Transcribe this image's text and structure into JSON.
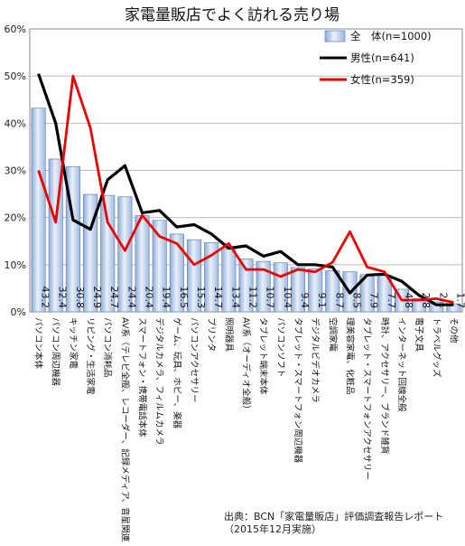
{
  "chart_data": {
    "type": "bar",
    "title": "家電量販店でよく訪れる売り場",
    "ylim": [
      0,
      60
    ],
    "yticks": [
      0,
      10,
      20,
      30,
      40,
      50,
      60
    ],
    "ytick_labels": [
      "0%",
      "10%",
      "20%",
      "30%",
      "40%",
      "50%",
      "60%"
    ],
    "grid": true,
    "legend_position": "top-right",
    "categories": [
      "パソコン本体",
      "パソコン周辺機器",
      "キッチン家電",
      "リビング・生活家電",
      "パソコン消耗品",
      "AV系（テレビ全般、レコーダー、記録メディア、音星関連）",
      "スマートフォン・携帯電話本体",
      "デジタルカメラ、フィルムカメラ",
      "ゲーム、玩具、ホビー、楽器",
      "パソコンアクセサリー",
      "プリンタ",
      "照明器具",
      "AV系（オーディオ全般）",
      "タブレット端末本体",
      "パソコンソフト",
      "タブレット・スマートフォン周辺機器",
      "デジタルビデオカメラ",
      "空調家電",
      "理美容家電、化粧品",
      "タブレット・スマートフォンアクセサリー",
      "時計、アクセサリー、ブランド雑貨",
      "インターネット回線全般",
      "電子文具",
      "トラベルグッズ",
      "その他"
    ],
    "series": [
      {
        "name": "全　体(n=1000)",
        "type": "bar",
        "color": "#b9cde8",
        "values": [
          43.2,
          32.4,
          30.8,
          24.9,
          24.7,
          24.4,
          20.4,
          19.4,
          16.5,
          15.3,
          14.7,
          13.4,
          11.2,
          10.7,
          10.4,
          9.4,
          9.1,
          8.7,
          8.5,
          7.9,
          7.7,
          4.8,
          2.8,
          2.1,
          1.7
        ],
        "value_labels": [
          "43.2",
          "32.4",
          "30.8",
          "24.9",
          "24.7",
          "24.4",
          "20.4",
          "19.4",
          "16.5",
          "15.3",
          "14.7",
          "13.4",
          "11.2",
          "10.7",
          "10.4",
          "9.4",
          "9.1",
          "8.7",
          "8.5",
          "7.9",
          "7.7",
          "4.8",
          "2.8",
          "2.1",
          "1.7"
        ]
      },
      {
        "name": "男性(n=641)",
        "type": "line",
        "color": "#000000",
        "values": [
          50.5,
          40,
          19.5,
          17.5,
          28,
          31,
          21,
          21.5,
          18,
          18.5,
          16.5,
          13.5,
          14,
          11.8,
          12.8,
          10,
          10,
          9.5,
          4,
          7.8,
          8,
          6.5,
          3.5,
          1.5,
          1.5
        ]
      },
      {
        "name": "女性(n=359)",
        "type": "line",
        "color": "#ee0000",
        "values": [
          30,
          19,
          50,
          39,
          19,
          13,
          20.5,
          16,
          14.5,
          10,
          12,
          14.5,
          9,
          9,
          7.5,
          9,
          8.5,
          10.5,
          17,
          9.5,
          8.5,
          2.5,
          2.5,
          2.8,
          2
        ]
      }
    ]
  },
  "source": {
    "line1": "出典：BCN「家電量販店」評価調査報告レポート",
    "line2": "（2015年12月実施）"
  }
}
